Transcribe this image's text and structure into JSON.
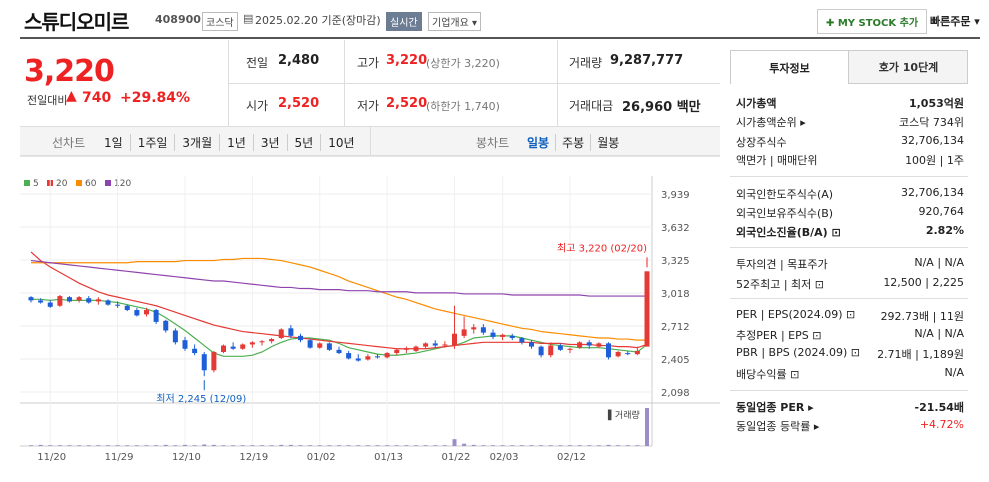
{
  "header": {
    "name": "스튜디오미르",
    "code": "408900",
    "market_tag": "코스닥",
    "date_text": "2025.02.20 기준(장마감)",
    "realtime_tag": "실시간",
    "company_tag": "기업개요 ▾",
    "mystock_label": "✚ MY STOCK 추가",
    "quick_order": "빠른주문 ▾"
  },
  "quote": {
    "price": "3,220",
    "change_label": "전일대비",
    "change_arrow": "▲",
    "change": "740",
    "change_pct": "+29.84%",
    "prev_label": "전일",
    "prev": "2,480",
    "open_label": "시가",
    "open": "2,520",
    "high_label": "고가",
    "high": "3,220",
    "high_note": "(상한가 3,220)",
    "low_label": "저가",
    "low": "2,520",
    "low_note": "(하한가 1,740)",
    "volume_label": "거래량",
    "volume": "9,287,777",
    "amount_label": "거래대금",
    "amount": "26,960 백만"
  },
  "period_tabs": {
    "label": "선차트",
    "items": [
      "1일",
      "1주일",
      "3개월",
      "1년",
      "3년",
      "5년",
      "10년"
    ],
    "candle_label": "봉차트",
    "candle_items": [
      "일봉",
      "주봉",
      "월봉"
    ],
    "candle_selected": "일봉"
  },
  "chart_data": {
    "type": "candlestick",
    "legend": [
      "5",
      "20",
      "60",
      "120"
    ],
    "legend_colors": [
      "#4caf50",
      "#e53935",
      "#fb8c00",
      "#8e44ad"
    ],
    "up_color": "#e53935",
    "down_color": "#1e5fd8",
    "yticks": [
      "3,939",
      "3,632",
      "3,325",
      "3,018",
      "2,712",
      "2,405",
      "2,098"
    ],
    "ylim": [
      2098,
      3939
    ],
    "xticks": [
      "11/20",
      "11/29",
      "12/10",
      "12/19",
      "01/02",
      "01/13",
      "01/22",
      "02/03",
      "02/12"
    ],
    "xtick_index": [
      2,
      9,
      16,
      23,
      30,
      37,
      44,
      49,
      56
    ],
    "high_annotation": "최고 3,220 (02/20)",
    "low_annotation": "최저 2,245 (12/09)",
    "volume_label": "거래량",
    "candles": [
      [
        2980,
        2990,
        2930,
        2950
      ],
      [
        2950,
        2970,
        2920,
        2930
      ],
      [
        2930,
        2950,
        2880,
        2890
      ],
      [
        2900,
        3000,
        2890,
        2990
      ],
      [
        2980,
        2990,
        2930,
        2940
      ],
      [
        2950,
        2990,
        2930,
        2980
      ],
      [
        2970,
        2990,
        2920,
        2930
      ],
      [
        2940,
        2980,
        2910,
        2960
      ],
      [
        2950,
        2960,
        2900,
        2910
      ],
      [
        2910,
        2940,
        2880,
        2900
      ],
      [
        2900,
        2910,
        2850,
        2860
      ],
      [
        2860,
        2880,
        2800,
        2810
      ],
      [
        2820,
        2880,
        2800,
        2860
      ],
      [
        2860,
        2870,
        2730,
        2750
      ],
      [
        2760,
        2770,
        2650,
        2670
      ],
      [
        2670,
        2690,
        2540,
        2560
      ],
      [
        2580,
        2610,
        2480,
        2500
      ],
      [
        2500,
        2540,
        2440,
        2460
      ],
      [
        2450,
        2470,
        2245,
        2300
      ],
      [
        2300,
        2480,
        2280,
        2470
      ],
      [
        2470,
        2540,
        2460,
        2530
      ],
      [
        2520,
        2560,
        2490,
        2500
      ],
      [
        2500,
        2550,
        2490,
        2540
      ],
      [
        2540,
        2570,
        2510,
        2560
      ],
      [
        2560,
        2580,
        2530,
        2570
      ],
      [
        2570,
        2600,
        2550,
        2590
      ],
      [
        2600,
        2690,
        2590,
        2680
      ],
      [
        2690,
        2720,
        2600,
        2620
      ],
      [
        2620,
        2640,
        2560,
        2580
      ],
      [
        2580,
        2590,
        2500,
        2510
      ],
      [
        2510,
        2560,
        2500,
        2550
      ],
      [
        2550,
        2560,
        2480,
        2490
      ],
      [
        2490,
        2520,
        2450,
        2460
      ],
      [
        2460,
        2480,
        2400,
        2410
      ],
      [
        2410,
        2450,
        2380,
        2390
      ],
      [
        2400,
        2450,
        2390,
        2430
      ],
      [
        2430,
        2450,
        2410,
        2420
      ],
      [
        2420,
        2470,
        2410,
        2460
      ],
      [
        2460,
        2500,
        2440,
        2490
      ],
      [
        2490,
        2520,
        2460,
        2500
      ],
      [
        2480,
        2530,
        2470,
        2520
      ],
      [
        2520,
        2560,
        2500,
        2550
      ],
      [
        2550,
        2580,
        2510,
        2530
      ],
      [
        2530,
        2570,
        2510,
        2540
      ],
      [
        2530,
        2900,
        2500,
        2640
      ],
      [
        2620,
        2800,
        2600,
        2680
      ],
      [
        2680,
        2730,
        2640,
        2700
      ],
      [
        2700,
        2730,
        2630,
        2650
      ],
      [
        2650,
        2680,
        2590,
        2610
      ],
      [
        2610,
        2640,
        2580,
        2630
      ],
      [
        2620,
        2640,
        2580,
        2600
      ],
      [
        2600,
        2610,
        2540,
        2560
      ],
      [
        2560,
        2580,
        2500,
        2520
      ],
      [
        2520,
        2530,
        2420,
        2440
      ],
      [
        2440,
        2560,
        2420,
        2530
      ],
      [
        2530,
        2550,
        2480,
        2490
      ],
      [
        2490,
        2510,
        2460,
        2500
      ],
      [
        2510,
        2570,
        2500,
        2560
      ],
      [
        2560,
        2580,
        2500,
        2530
      ],
      [
        2520,
        2560,
        2510,
        2550
      ],
      [
        2550,
        2560,
        2400,
        2420
      ],
      [
        2430,
        2480,
        2420,
        2470
      ],
      [
        2460,
        2480,
        2440,
        2450
      ],
      [
        2450,
        2520,
        2440,
        2480
      ],
      [
        2520,
        3220,
        2520,
        3220
      ]
    ],
    "volumes": [
      2,
      3,
      2,
      2,
      2,
      2,
      2,
      2,
      2,
      2,
      2,
      2,
      2,
      2,
      3,
      2,
      3,
      2,
      4,
      3,
      2,
      2,
      2,
      2,
      2,
      2,
      3,
      3,
      2,
      2,
      2,
      2,
      2,
      2,
      2,
      2,
      2,
      2,
      2,
      2,
      2,
      2,
      2,
      2,
      18,
      6,
      3,
      2,
      2,
      2,
      2,
      2,
      2,
      2,
      2,
      2,
      2,
      2,
      2,
      2,
      3,
      2,
      2,
      2,
      100
    ],
    "ma": {
      "5": [
        2960,
        2960,
        2950,
        2960,
        2950,
        2950,
        2950,
        2950,
        2940,
        2930,
        2910,
        2890,
        2870,
        2840,
        2790,
        2730,
        2670,
        2600,
        2530,
        2460,
        2430,
        2430,
        2430,
        2440,
        2470,
        2520,
        2560,
        2590,
        2600,
        2600,
        2590,
        2580,
        2550,
        2510,
        2490,
        2470,
        2450,
        2440,
        2440,
        2450,
        2460,
        2480,
        2500,
        2520,
        2530,
        2560,
        2600,
        2610,
        2620,
        2620,
        2620,
        2600,
        2580,
        2560,
        2540,
        2530,
        2520,
        2510,
        2510,
        2510,
        2500,
        2490,
        2480,
        2470,
        2540
      ],
      "20": [
        3400,
        3320,
        3260,
        3210,
        3160,
        3110,
        3070,
        3030,
        3000,
        2980,
        2960,
        2940,
        2920,
        2900,
        2870,
        2840,
        2810,
        2780,
        2750,
        2720,
        2700,
        2680,
        2660,
        2650,
        2640,
        2630,
        2620,
        2610,
        2600,
        2590,
        2580,
        2570,
        2560,
        2550,
        2540,
        2530,
        2520,
        2510,
        2500,
        2500,
        2500,
        2500,
        2510,
        2520,
        2530,
        2540,
        2550,
        2560,
        2560,
        2560,
        2560,
        2560,
        2560,
        2550,
        2550,
        2550,
        2540,
        2540,
        2540,
        2530,
        2530,
        2520,
        2520,
        2510,
        2540
      ],
      "60": [
        3300,
        3300,
        3300,
        3300,
        3300,
        3300,
        3300,
        3300,
        3300,
        3300,
        3300,
        3310,
        3310,
        3310,
        3310,
        3310,
        3320,
        3320,
        3320,
        3320,
        3330,
        3330,
        3340,
        3340,
        3340,
        3330,
        3320,
        3300,
        3280,
        3260,
        3230,
        3200,
        3170,
        3130,
        3100,
        3070,
        3040,
        3010,
        2980,
        2960,
        2930,
        2900,
        2870,
        2850,
        2830,
        2810,
        2790,
        2770,
        2750,
        2730,
        2710,
        2690,
        2680,
        2660,
        2650,
        2640,
        2630,
        2620,
        2610,
        2600,
        2600,
        2590,
        2590,
        2580,
        2580
      ],
      "120": [
        3320,
        3310,
        3300,
        3290,
        3280,
        3270,
        3260,
        3250,
        3240,
        3230,
        3220,
        3210,
        3200,
        3190,
        3180,
        3170,
        3160,
        3150,
        3140,
        3130,
        3130,
        3120,
        3110,
        3100,
        3090,
        3080,
        3070,
        3070,
        3060,
        3060,
        3050,
        3050,
        3050,
        3040,
        3040,
        3040,
        3030,
        3030,
        3030,
        3030,
        3020,
        3020,
        3020,
        3020,
        3020,
        3010,
        3010,
        3010,
        3010,
        3010,
        3000,
        3000,
        3000,
        3000,
        3000,
        3000,
        3000,
        3000,
        2990,
        2990,
        2990,
        2990,
        2990,
        2990,
        2990
      ]
    }
  },
  "info": {
    "tab_invest": "투자정보",
    "tab_order": "호가 10단계",
    "rows": [
      {
        "k": "시가총액",
        "v": "1,053억원",
        "bold": true
      },
      {
        "k": "시가총액순위 ▸",
        "v": "코스닥 734위"
      },
      {
        "k": "상장주식수",
        "v": "32,706,134"
      },
      {
        "k": "액면가 | 매매단위",
        "v": "100원 | 1주"
      },
      {
        "k": "외국인한도주식수(A)",
        "v": "32,706,134"
      },
      {
        "k": "외국인보유주식수(B)",
        "v": "920,764"
      },
      {
        "k": "외국인소진율(B/A) ⊡",
        "v": "2.82%",
        "bold": true
      },
      {
        "k": "투자의견 | 목표주가",
        "v": "N/A | N/A"
      },
      {
        "k": "52주최고 | 최저 ⊡",
        "v": "12,500 | 2,225"
      },
      {
        "k": "PER | EPS(2024.09) ⊡",
        "v": "292.73배 | 11원"
      },
      {
        "k": "추정PER | EPS ⊡",
        "v": "N/A | N/A"
      },
      {
        "k": "PBR | BPS (2024.09) ⊡",
        "v": "2.71배 | 1,189원"
      },
      {
        "k": "배당수익률 ⊡",
        "v": "N/A"
      },
      {
        "k": "동일업종 PER ▸",
        "v": "-21.54배",
        "bold": true
      },
      {
        "k": "동일업종 등락률 ▸",
        "v": "+4.72%",
        "red": true
      }
    ]
  }
}
